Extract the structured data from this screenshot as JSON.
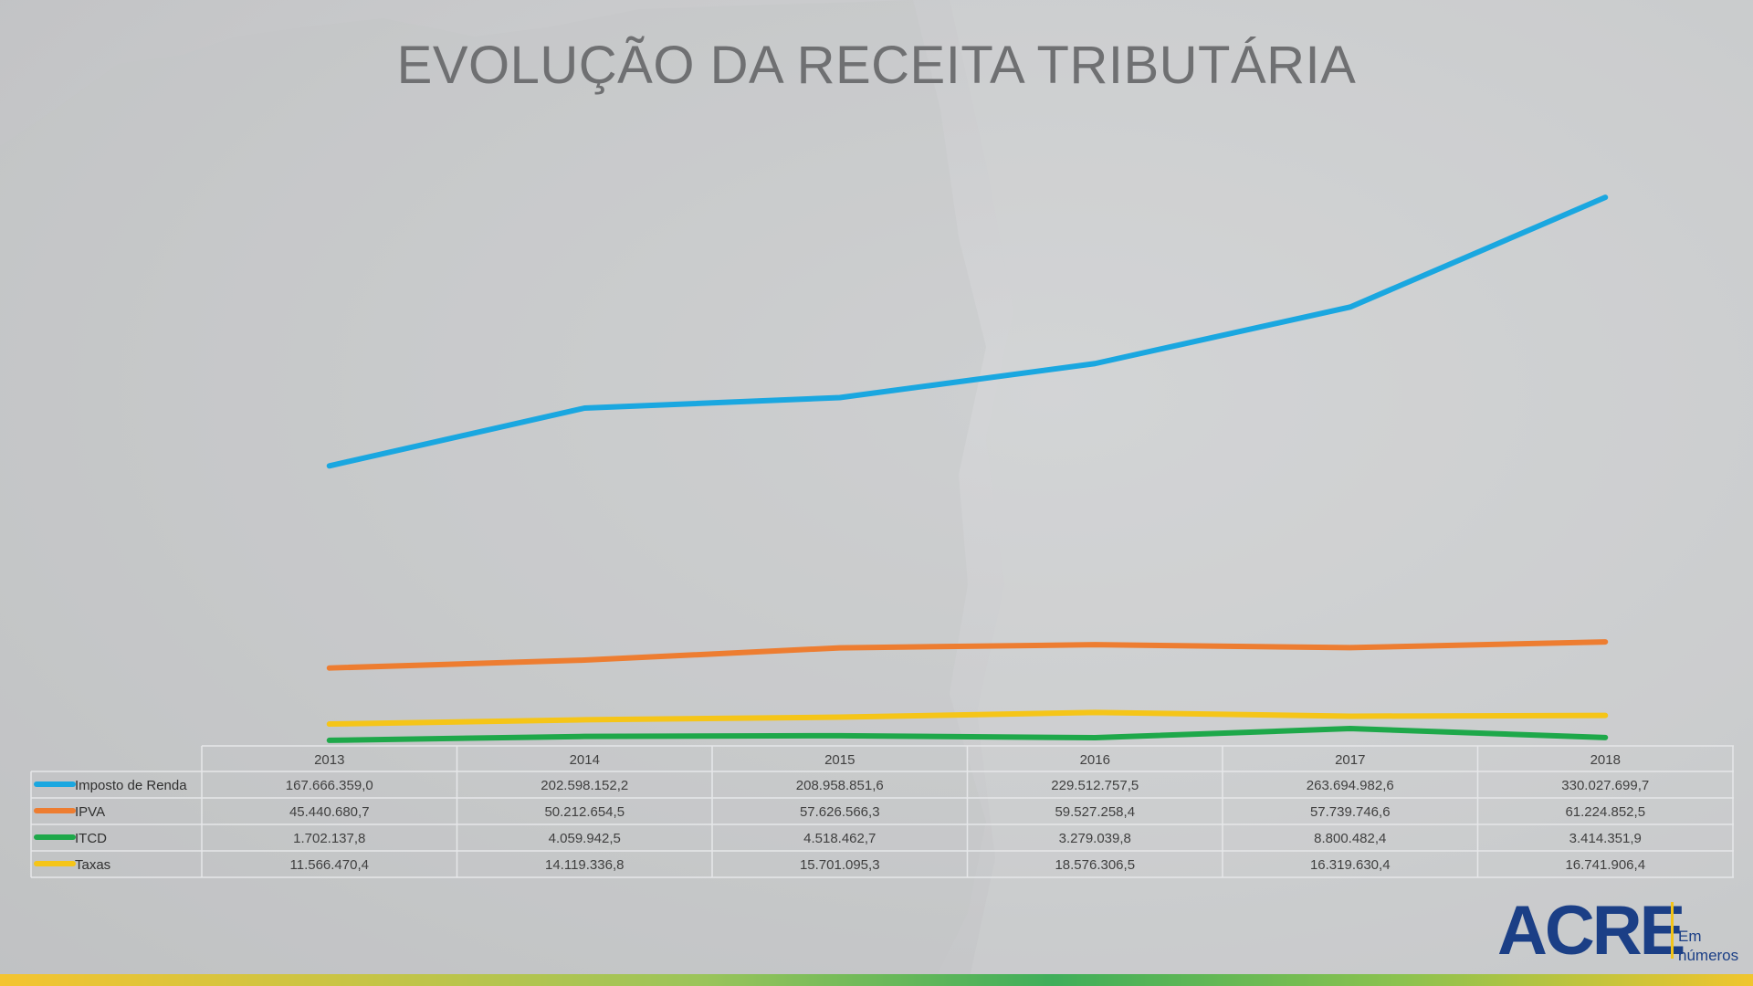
{
  "chart_data": {
    "type": "line",
    "title": "EVOLUÇÃO DA RECEITA TRIBUTÁRIA",
    "categories": [
      "2013",
      "2014",
      "2015",
      "2016",
      "2017",
      "2018"
    ],
    "series": [
      {
        "name": "Imposto de Renda",
        "color": "#1aa7e0",
        "values": [
          167666359.0,
          202598152.2,
          208958851.6,
          229512757.5,
          263694982.6,
          330027699.7
        ],
        "labels": [
          "167.666.359,0",
          "202.598.152,2",
          "208.958.851,6",
          "229.512.757,5",
          "263.694.982,6",
          "330.027.699,7"
        ]
      },
      {
        "name": "IPVA",
        "color": "#ed7d31",
        "values": [
          45440680.7,
          50212654.5,
          57626566.3,
          59527258.4,
          57739746.6,
          61224852.5
        ],
        "labels": [
          "45.440.680,7",
          "50.212.654,5",
          "57.626.566,3",
          "59.527.258,4",
          "57.739.746,6",
          "61.224.852,5"
        ]
      },
      {
        "name": "ITCD",
        "color": "#1ea84a",
        "values": [
          1702137.8,
          4059942.5,
          4518462.7,
          3279039.8,
          8800482.4,
          3414351.9
        ],
        "labels": [
          "1.702.137,8",
          "4.059.942,5",
          "4.518.462,7",
          "3.279.039,8",
          "8.800.482,4",
          "3.414.351,9"
        ]
      },
      {
        "name": "Taxas",
        "color": "#f5c518",
        "values": [
          11566470.4,
          14119336.8,
          15701095.3,
          18576306.5,
          16319630.4,
          16741906.4
        ],
        "labels": [
          "11.566.470,4",
          "14.119.336,8",
          "15.701.095,3",
          "18.576.306,5",
          "16.319.630,4",
          "16.741.906,4"
        ]
      }
    ],
    "ylim": [
      0,
      350000000
    ],
    "grid": false,
    "legend": "data-table-below"
  },
  "logo": {
    "main": "ACRE",
    "sub1": "Em",
    "sub2": "números"
  }
}
